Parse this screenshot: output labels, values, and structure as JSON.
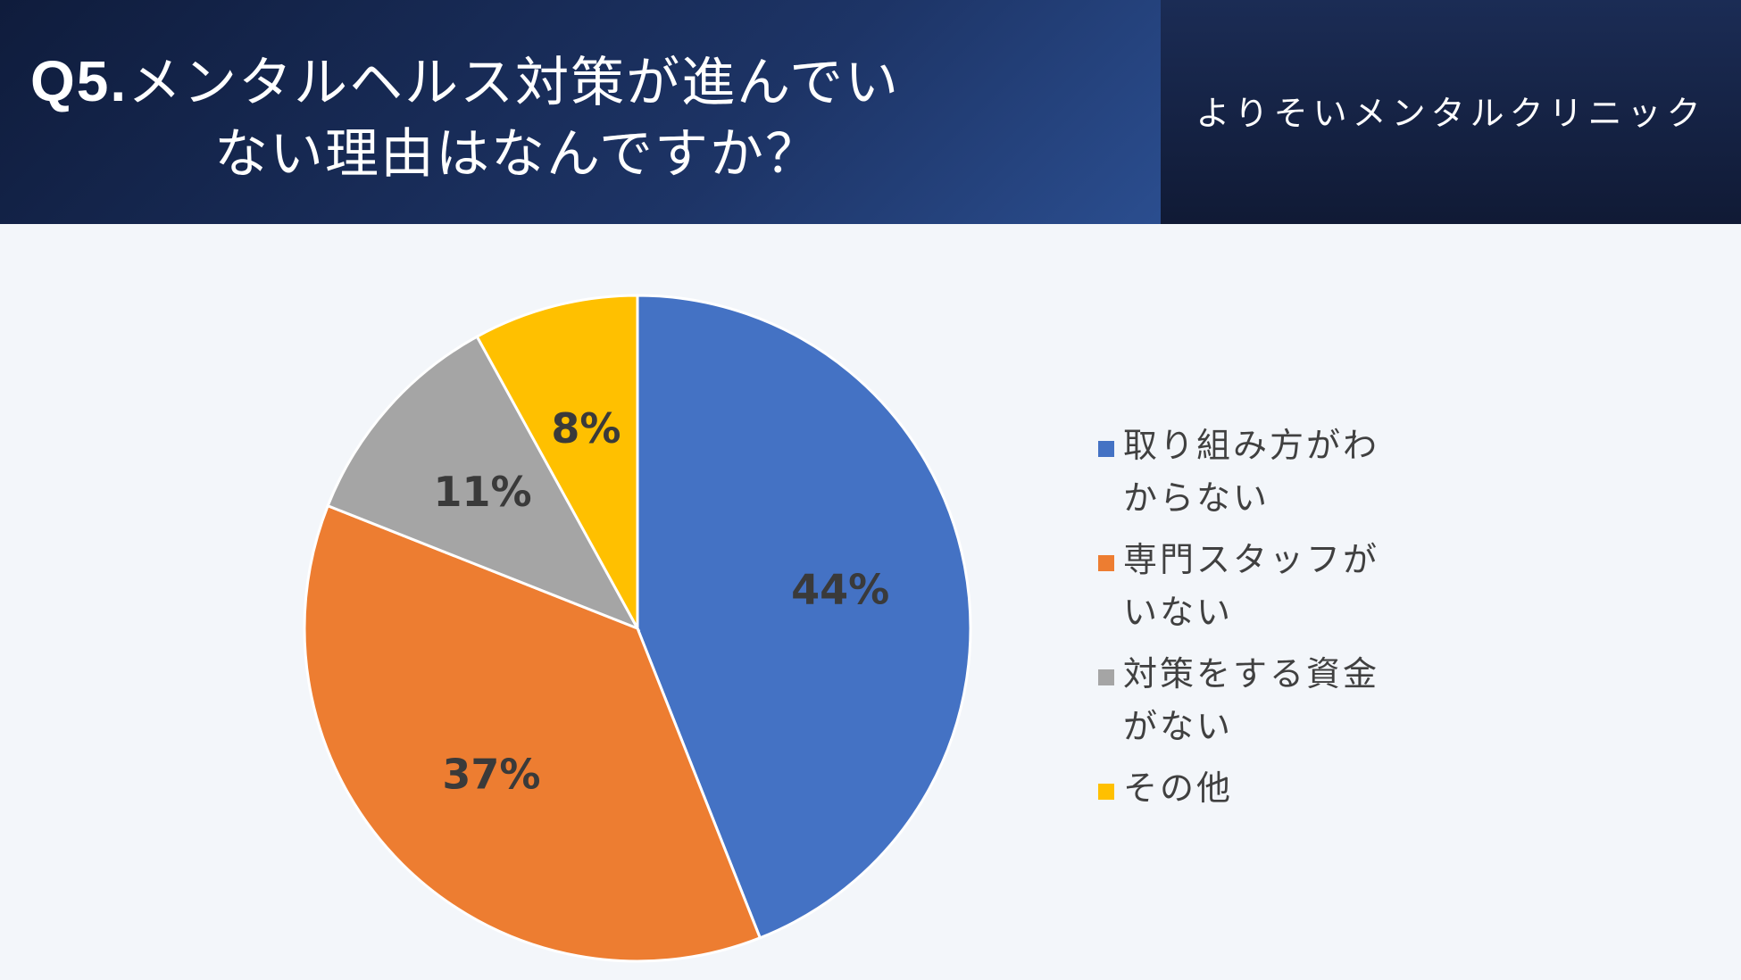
{
  "header": {
    "title_prefix": "Q5.",
    "title_line1": "メンタルヘルス対策が進んでい",
    "title_line2": "ない理由はなんですか？",
    "organization": "よりそいメンタルクリニック"
  },
  "chart_data": {
    "type": "pie",
    "title": "Q5.メンタルヘルス対策が進んでいない理由はなんですか？",
    "categories": [
      "取り組み方がわからない",
      "専門スタッフがいない",
      "対策をする資金がない",
      "その他"
    ],
    "values": [
      44,
      37,
      11,
      8
    ],
    "labels": [
      "44%",
      "37%",
      "11%",
      "8%"
    ],
    "colors": [
      "#4472c4",
      "#ed7d31",
      "#a5a5a5",
      "#ffc000"
    ],
    "legend_position": "right",
    "start": "top, clockwise"
  }
}
